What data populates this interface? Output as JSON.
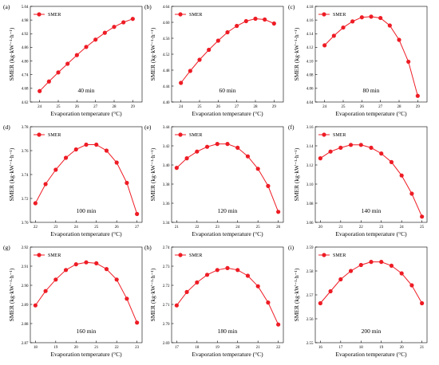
{
  "figure": {
    "series_color": "#ee1c25"
  },
  "chart_data": [
    {
      "type": "line",
      "panel_tag": "(a)",
      "annotation": "40 min",
      "xlabel": "Evaporation temperature (°C)",
      "ylabel": "SMER (kg·kW⁻¹·h⁻¹)",
      "xlim": [
        23.5,
        29.5
      ],
      "ylim": [
        4.62,
        5.04
      ],
      "xticks": [
        24,
        25,
        26,
        27,
        28,
        29
      ],
      "yticks": [
        "4.62",
        "4.68",
        "4.74",
        "4.80",
        "4.86",
        "4.92",
        "4.98",
        "5.04"
      ],
      "legend": "top-left",
      "series": [
        {
          "name": "SMER",
          "x": [
            24,
            24.5,
            25,
            25.5,
            26,
            26.5,
            27,
            27.5,
            28,
            28.5,
            29
          ],
          "y": [
            4.668,
            4.71,
            4.75,
            4.788,
            4.826,
            4.862,
            4.894,
            4.924,
            4.95,
            4.97,
            4.985
          ]
        }
      ]
    },
    {
      "type": "line",
      "panel_tag": "(b)",
      "annotation": "60 min",
      "xlabel": "Evaporation temperature (°C)",
      "ylabel": "SMER (kg·kW⁻¹·h⁻¹)",
      "xlim": [
        23.5,
        29.5
      ],
      "ylim": [
        4.4,
        4.64
      ],
      "xticks": [
        24,
        25,
        26,
        27,
        28,
        29
      ],
      "yticks": [
        "4.40",
        "4.44",
        "4.48",
        "4.52",
        "4.56",
        "4.60",
        "4.64"
      ],
      "legend": "top-left",
      "series": [
        {
          "name": "SMER",
          "x": [
            24,
            24.5,
            25,
            25.5,
            26,
            26.5,
            27,
            27.5,
            28,
            28.5,
            29
          ],
          "y": [
            4.448,
            4.478,
            4.506,
            4.531,
            4.554,
            4.575,
            4.591,
            4.603,
            4.609,
            4.607,
            4.597
          ]
        }
      ]
    },
    {
      "type": "line",
      "panel_tag": "(c)",
      "annotation": "80 min",
      "xlabel": "Evaporation temperature (°C)",
      "ylabel": "SMER (kg·kW⁻¹·h⁻¹)",
      "xlim": [
        23.5,
        29.5
      ],
      "ylim": [
        4.04,
        4.18
      ],
      "xticks": [
        24,
        25,
        26,
        27,
        28,
        29
      ],
      "yticks": [
        "4.04",
        "4.06",
        "4.08",
        "4.10",
        "4.12",
        "4.14",
        "4.16",
        "4.18"
      ],
      "legend": "top-left",
      "series": [
        {
          "name": "SMER",
          "x": [
            24,
            24.5,
            25,
            25.5,
            26,
            26.5,
            27,
            27.5,
            28,
            28.5,
            29
          ],
          "y": [
            4.123,
            4.137,
            4.149,
            4.158,
            4.164,
            4.165,
            4.163,
            4.152,
            4.131,
            4.099,
            4.049
          ]
        }
      ]
    },
    {
      "type": "line",
      "panel_tag": "(d)",
      "annotation": "100 min",
      "xlabel": "Evaporation temperature (°C)",
      "ylabel": "SMER (kg·kW⁻¹·h⁻¹)",
      "xlim": [
        21.75,
        27.25
      ],
      "ylim": [
        3.7,
        3.78
      ],
      "xticks": [
        22,
        23,
        24,
        25,
        26,
        27
      ],
      "yticks": [
        "3.70",
        "3.72",
        "3.74",
        "3.76",
        "3.78"
      ],
      "legend": "top-left",
      "series": [
        {
          "name": "SMER",
          "x": [
            22,
            22.5,
            23,
            23.5,
            24,
            24.5,
            25,
            25.5,
            26,
            26.5,
            27
          ],
          "y": [
            3.716,
            3.732,
            3.744,
            3.754,
            3.761,
            3.765,
            3.765,
            3.76,
            3.75,
            3.733,
            3.707
          ]
        }
      ]
    },
    {
      "type": "line",
      "panel_tag": "(e)",
      "annotation": "120 min",
      "xlabel": "Evaporation temperature (°C)",
      "ylabel": "SMER (kg·kW⁻¹·h⁻¹)",
      "xlim": [
        20.75,
        26.25
      ],
      "ylim": [
        3.34,
        3.44
      ],
      "xticks": [
        21,
        22,
        23,
        24,
        25,
        26
      ],
      "yticks": [
        "3.34",
        "3.36",
        "3.38",
        "3.40",
        "3.42",
        "3.44"
      ],
      "legend": "top-left",
      "series": [
        {
          "name": "SMER",
          "x": [
            21,
            21.5,
            22,
            22.5,
            23,
            23.5,
            24,
            24.5,
            25,
            25.5,
            26
          ],
          "y": [
            3.397,
            3.407,
            3.414,
            3.419,
            3.422,
            3.422,
            3.418,
            3.409,
            3.396,
            3.378,
            3.351
          ]
        }
      ]
    },
    {
      "type": "line",
      "panel_tag": "(f)",
      "annotation": "140 min",
      "xlabel": "Evaporation temperature (°C)",
      "ylabel": "SMER (kg·kW⁻¹·h⁻¹)",
      "xlim": [
        19.75,
        25.25
      ],
      "ylim": [
        3.06,
        3.16
      ],
      "xticks": [
        20,
        21,
        22,
        23,
        24,
        25
      ],
      "yticks": [
        "3.06",
        "3.08",
        "3.10",
        "3.12",
        "3.14",
        "3.16"
      ],
      "legend": "top-left",
      "series": [
        {
          "name": "SMER",
          "x": [
            20,
            20.5,
            21,
            21.5,
            22,
            22.5,
            23,
            23.5,
            24,
            24.5,
            25
          ],
          "y": [
            3.127,
            3.134,
            3.138,
            3.141,
            3.141,
            3.138,
            3.132,
            3.123,
            3.109,
            3.09,
            3.066
          ]
        }
      ]
    },
    {
      "type": "line",
      "panel_tag": "(g)",
      "annotation": "160 min",
      "xlabel": "Evaporation temperature (°C)",
      "ylabel": "SMER (kg·kW⁻¹·h⁻¹)",
      "xlim": [
        17.75,
        23.25
      ],
      "ylim": [
        2.87,
        2.92
      ],
      "xticks": [
        18,
        19,
        20,
        21,
        22,
        23
      ],
      "yticks": [
        "2.87",
        "2.88",
        "2.89",
        "2.90",
        "2.91",
        "2.92"
      ],
      "legend": "top-left",
      "series": [
        {
          "name": "SMER",
          "x": [
            18,
            18.5,
            19,
            19.5,
            20,
            20.5,
            21,
            21.5,
            22,
            22.5,
            23
          ],
          "y": [
            2.8895,
            2.897,
            2.903,
            2.908,
            2.911,
            2.912,
            2.9115,
            2.9085,
            2.903,
            2.893,
            2.8805
          ]
        }
      ]
    },
    {
      "type": "line",
      "panel_tag": "(h)",
      "annotation": "180 min",
      "xlabel": "Evaporation temperature (°C)",
      "ylabel": "SMER (kg·kW⁻¹·h⁻¹)",
      "xlim": [
        16.75,
        22.25
      ],
      "ylim": [
        2.69,
        2.74
      ],
      "xticks": [
        17,
        18,
        19,
        20,
        21,
        22
      ],
      "yticks": [
        "2.69",
        "2.70",
        "2.71",
        "2.72",
        "2.73",
        "2.74"
      ],
      "legend": "top-left",
      "series": [
        {
          "name": "SMER",
          "x": [
            17,
            17.5,
            18,
            18.5,
            19,
            19.5,
            20,
            20.5,
            21,
            21.5,
            22
          ],
          "y": [
            2.7095,
            2.7165,
            2.7215,
            2.7255,
            2.728,
            2.729,
            2.728,
            2.725,
            2.7195,
            2.711,
            2.6995
          ]
        }
      ]
    },
    {
      "type": "line",
      "panel_tag": "(i)",
      "annotation": "200 min",
      "xlabel": "Evaporation temperature (°C)",
      "ylabel": "SMER (kg·kW⁻¹·h⁻¹)",
      "xlim": [
        15.75,
        21.25
      ],
      "ylim": [
        2.55,
        2.59
      ],
      "xticks": [
        16,
        17,
        18,
        19,
        20,
        21
      ],
      "yticks": [
        "2.55",
        "2.56",
        "2.57",
        "2.58",
        "2.59"
      ],
      "legend": "top-left",
      "series": [
        {
          "name": "SMER",
          "x": [
            16,
            16.5,
            17,
            17.5,
            18,
            18.5,
            19,
            19.5,
            20,
            20.5,
            21
          ],
          "y": [
            2.5665,
            2.5715,
            2.5765,
            2.58,
            2.5825,
            2.5838,
            2.5838,
            2.5822,
            2.579,
            2.574,
            2.5665
          ]
        }
      ]
    }
  ]
}
